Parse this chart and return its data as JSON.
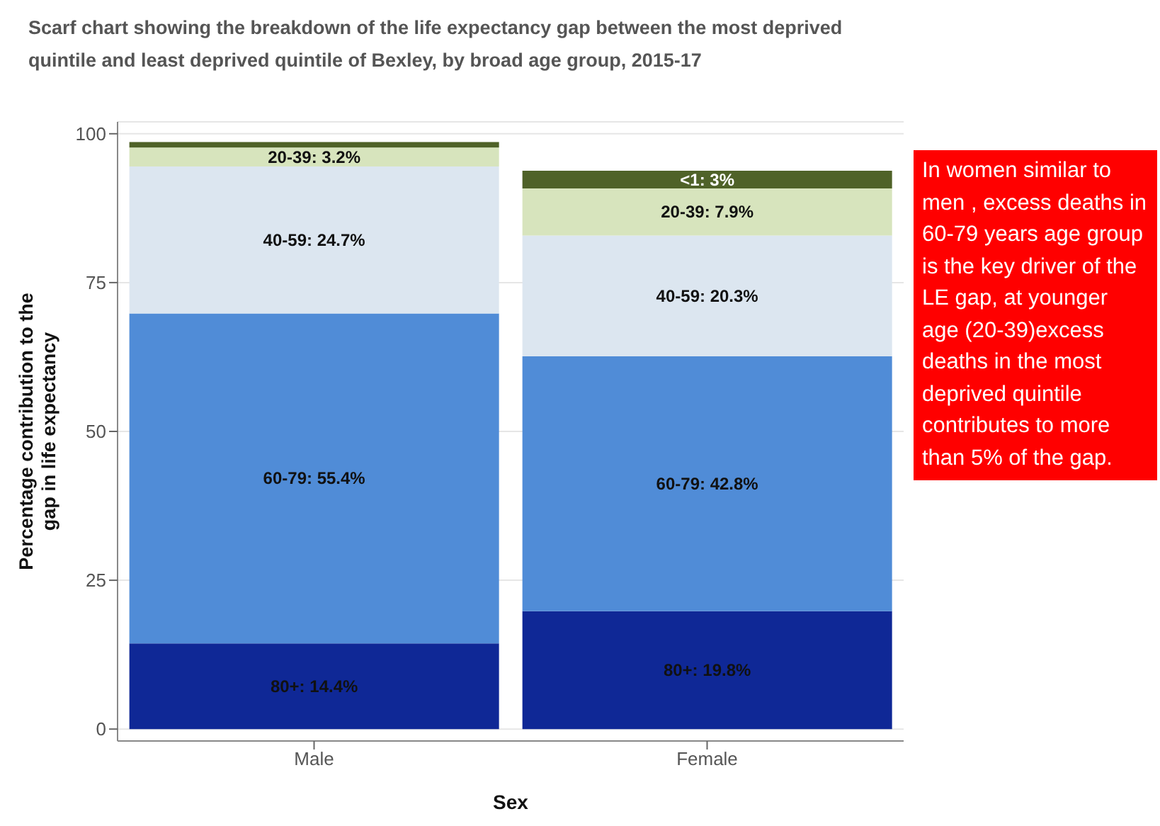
{
  "chart_data": {
    "type": "bar",
    "title": "Scarf chart showing the breakdown of the life expectancy gap between the most deprived quintile and least deprived quintile of Bexley, by broad age group, 2015-17",
    "xlabel": "Sex",
    "ylabel": "Percentage contribution to the gap in life expectancy",
    "categories": [
      "Male",
      "Female"
    ],
    "stacked": true,
    "series": [
      {
        "color": "#0f2896",
        "values": [
          14.4,
          19.8
        ],
        "value_labels": [
          "80+: 14.4%",
          "80+: 19.8%"
        ]
      },
      {
        "color": "#508cd7",
        "values": [
          55.4,
          42.8
        ],
        "value_labels": [
          "60-79: 55.4%",
          "60-79: 42.8%"
        ]
      },
      {
        "color": "#dce6f0",
        "values": [
          24.7,
          20.3
        ],
        "value_labels": [
          "40-59: 24.7%",
          "40-59: 20.3%"
        ]
      },
      {
        "color": "#d7e4bd",
        "values": [
          3.2,
          7.9
        ],
        "value_labels": [
          "20-39: 3.2%",
          "20-39: 7.9%"
        ]
      },
      {
        "color": "#4f6228",
        "values": [
          0.9,
          3
        ],
        "value_labels": [
          null,
          "<1: 3%"
        ]
      }
    ],
    "ylim": [
      -2,
      102
    ],
    "yticks": [
      0,
      25,
      50,
      75,
      100
    ],
    "grid": "y",
    "legend": false,
    "annotations": [
      "In women similar to men , excess deaths in 60-79 years age group is the key driver of the LE gap, at younger age (20-39)excess deaths in the most deprived quintile contributes to more than 5% of the gap."
    ]
  }
}
